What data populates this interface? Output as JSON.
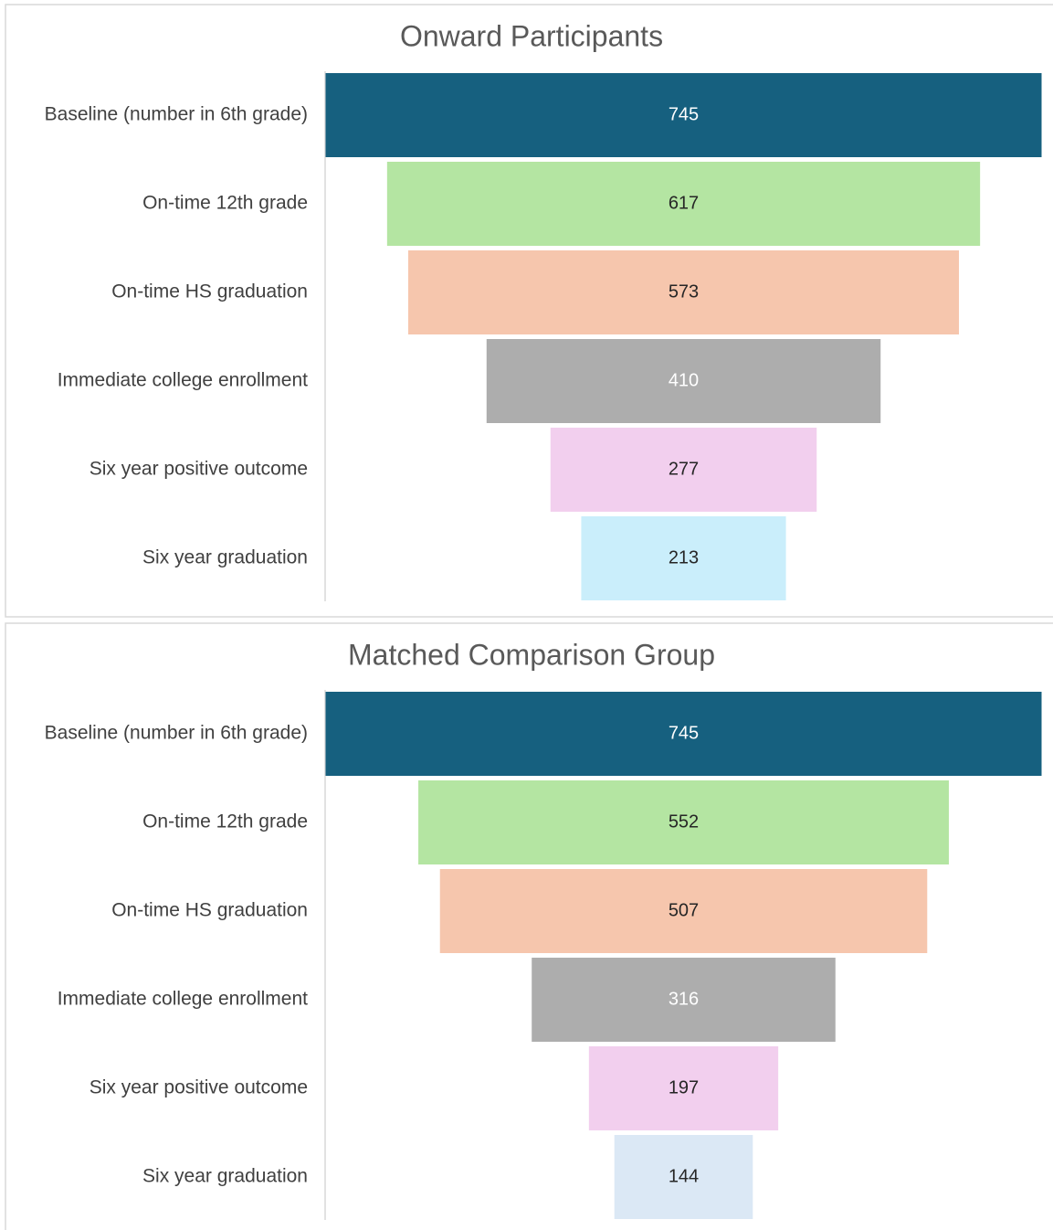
{
  "chart_data": [
    {
      "type": "funnel",
      "title": "Onward Participants",
      "categories": [
        "Baseline (number in 6th grade)",
        "On-time 12th grade",
        "On-time HS graduation",
        "Immediate college enrollment",
        "Six year positive outcome",
        "Six year graduation"
      ],
      "values": [
        745,
        617,
        573,
        410,
        277,
        213
      ],
      "colors": [
        "#16607f",
        "#b4e5a2",
        "#f6c6ad",
        "#adadad",
        "#f2cfee",
        "#caeefb"
      ]
    },
    {
      "type": "funnel",
      "title": "Matched Comparison Group",
      "categories": [
        "Baseline (number in 6th grade)",
        "On-time 12th grade",
        "On-time HS graduation",
        "Immediate college enrollment",
        "Six year positive outcome",
        "Six year graduation"
      ],
      "values": [
        745,
        552,
        507,
        316,
        197,
        144
      ],
      "colors": [
        "#16607f",
        "#b4e5a2",
        "#f6c6ad",
        "#adadad",
        "#f2cfee",
        "#dbe8f5"
      ]
    }
  ]
}
